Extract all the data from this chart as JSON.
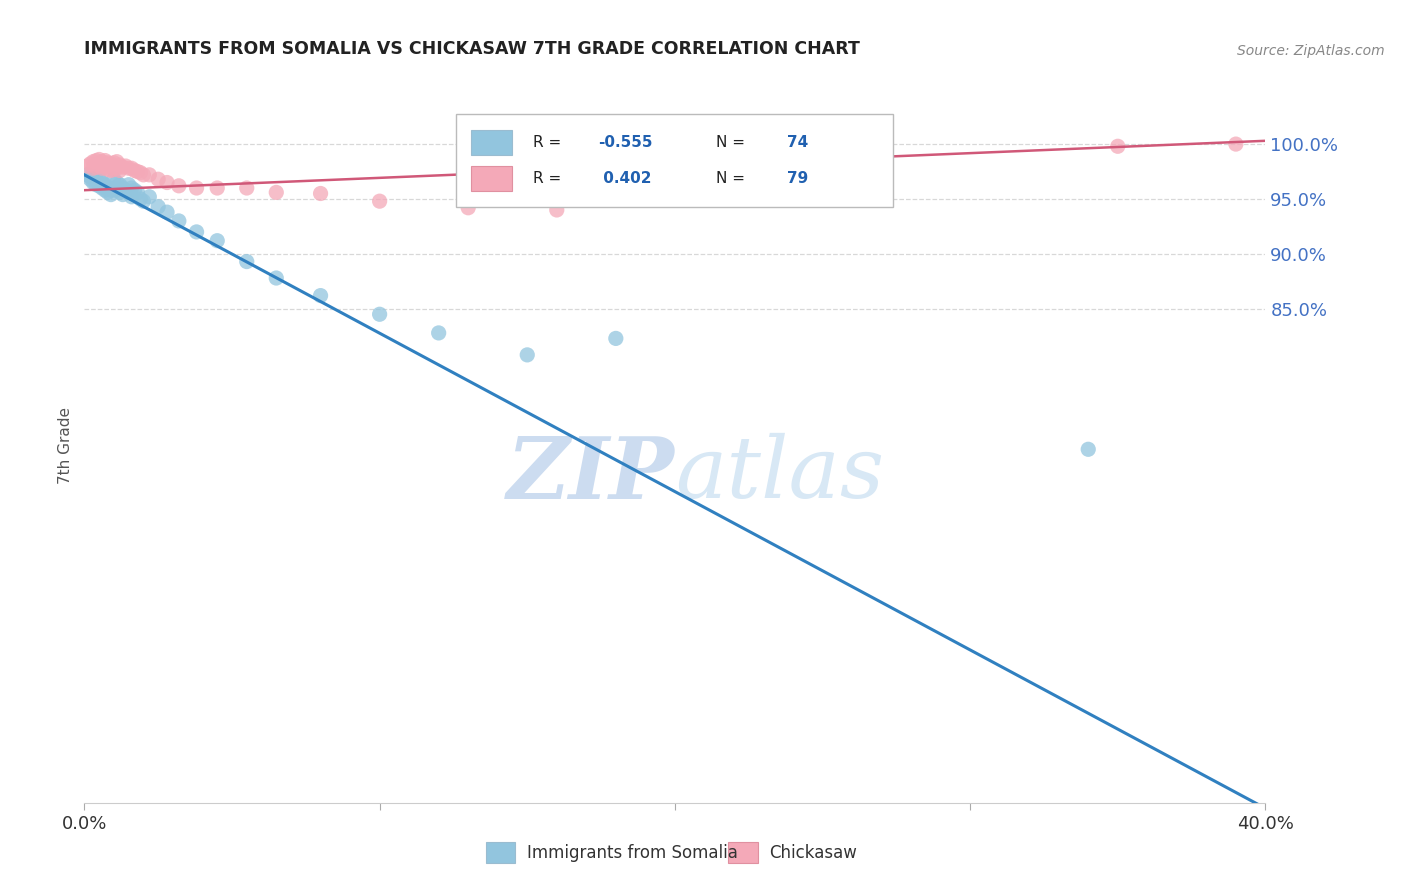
{
  "title": "IMMIGRANTS FROM SOMALIA VS CHICKASAW 7TH GRADE CORRELATION CHART",
  "source": "Source: ZipAtlas.com",
  "ylabel": "7th Grade",
  "ytick_labels_right": [
    "100.0%",
    "95.0%",
    "90.0%",
    "85.0%"
  ],
  "ytick_values_right": [
    1.0,
    0.95,
    0.9,
    0.85
  ],
  "xlim": [
    0.0,
    0.4
  ],
  "ylim": [
    0.4,
    1.05
  ],
  "blue_color": "#92c5de",
  "pink_color": "#f4a9b8",
  "trendline_blue_color": "#3080c0",
  "trendline_pink_color": "#d05878",
  "watermark_color": "#ccdcf0",
  "blue_trend_x": [
    0.0,
    0.4
  ],
  "blue_trend_y": [
    0.972,
    0.395
  ],
  "pink_trend_x": [
    0.0,
    0.4
  ],
  "pink_trend_y": [
    0.958,
    1.003
  ],
  "grid_color": "#d8d8d8",
  "background_color": "#ffffff",
  "blue_scatter_x": [
    0.001,
    0.002,
    0.002,
    0.003,
    0.003,
    0.004,
    0.004,
    0.005,
    0.005,
    0.006,
    0.006,
    0.007,
    0.007,
    0.008,
    0.008,
    0.009,
    0.009,
    0.01,
    0.01,
    0.011,
    0.011,
    0.012,
    0.012,
    0.013,
    0.013,
    0.014,
    0.015,
    0.015,
    0.016,
    0.016,
    0.017,
    0.018,
    0.019,
    0.02,
    0.022,
    0.025,
    0.028,
    0.032,
    0.038,
    0.045,
    0.055,
    0.065,
    0.08,
    0.1,
    0.12,
    0.15,
    0.18,
    0.34
  ],
  "blue_scatter_y": [
    0.972,
    0.97,
    0.968,
    0.97,
    0.965,
    0.968,
    0.963,
    0.968,
    0.962,
    0.965,
    0.96,
    0.963,
    0.958,
    0.96,
    0.956,
    0.958,
    0.954,
    0.968,
    0.96,
    0.965,
    0.958,
    0.963,
    0.956,
    0.96,
    0.954,
    0.958,
    0.963,
    0.956,
    0.96,
    0.952,
    0.958,
    0.956,
    0.95,
    0.948,
    0.952,
    0.943,
    0.938,
    0.93,
    0.92,
    0.912,
    0.893,
    0.878,
    0.862,
    0.845,
    0.828,
    0.808,
    0.823,
    0.722
  ],
  "pink_scatter_x": [
    0.001,
    0.002,
    0.003,
    0.003,
    0.004,
    0.004,
    0.005,
    0.005,
    0.006,
    0.006,
    0.007,
    0.007,
    0.008,
    0.008,
    0.009,
    0.009,
    0.01,
    0.01,
    0.011,
    0.011,
    0.012,
    0.012,
    0.013,
    0.014,
    0.015,
    0.016,
    0.017,
    0.018,
    0.019,
    0.02,
    0.022,
    0.025,
    0.028,
    0.032,
    0.038,
    0.045,
    0.055,
    0.065,
    0.08,
    0.1,
    0.13,
    0.16,
    0.35,
    0.39
  ],
  "pink_scatter_y": [
    0.98,
    0.982,
    0.984,
    0.978,
    0.985,
    0.979,
    0.986,
    0.98,
    0.984,
    0.978,
    0.985,
    0.979,
    0.983,
    0.977,
    0.982,
    0.976,
    0.983,
    0.977,
    0.984,
    0.978,
    0.981,
    0.976,
    0.979,
    0.98,
    0.978,
    0.978,
    0.976,
    0.975,
    0.974,
    0.972,
    0.972,
    0.968,
    0.965,
    0.962,
    0.96,
    0.96,
    0.96,
    0.956,
    0.955,
    0.948,
    0.942,
    0.94,
    0.998,
    1.0
  ]
}
